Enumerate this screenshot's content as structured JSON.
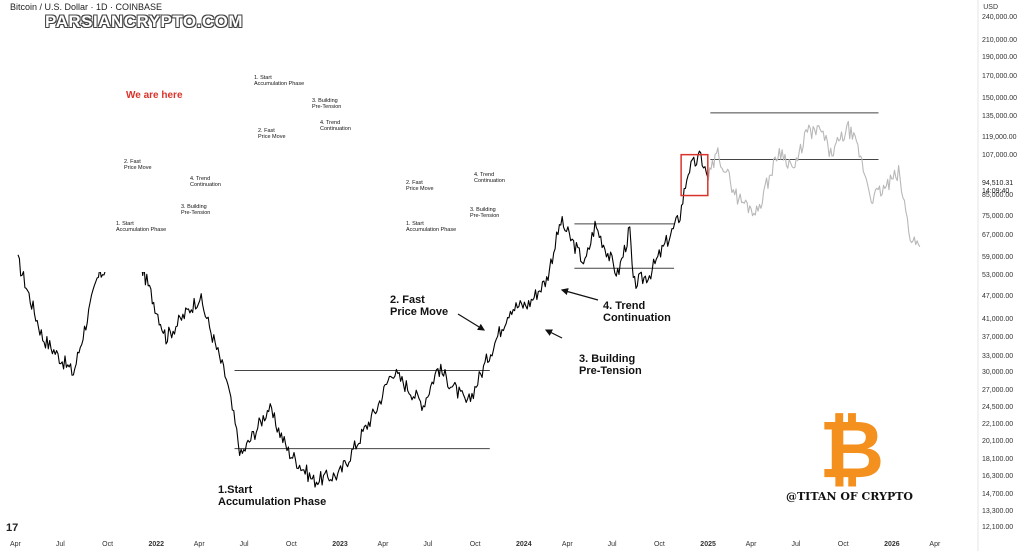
{
  "header": {
    "symbol_text": "Bitcoin / U.S. Dollar · 1D · COINBASE",
    "watermark": "PARSIANCRYPTO.COM",
    "currency": "USD"
  },
  "price_tag": {
    "price": "94,510.31",
    "countdown": "14:09:40"
  },
  "tv_logo": "17",
  "chart_data": {
    "type": "line",
    "x_axis_labels": [
      "Apr",
      "Jul",
      "Oct",
      "2022",
      "Apr",
      "Jul",
      "Oct",
      "2023",
      "Apr",
      "Jul",
      "Oct",
      "2024",
      "Apr",
      "Jul",
      "Oct",
      "2025",
      "Apr",
      "Jul",
      "Oct",
      "2026",
      "Apr"
    ],
    "x_axis_bold": [
      "2022",
      "2023",
      "2024",
      "2025",
      "2026"
    ],
    "y_axis_labels": [
      240000,
      210000,
      190000,
      170000,
      150000,
      135000,
      119000,
      107000,
      94510.31,
      85000,
      75000,
      67000,
      59000,
      53000,
      47000,
      41000,
      37000,
      33000,
      30000,
      27000,
      24500,
      22100,
      20100,
      18100,
      16300,
      14700,
      13300,
      12100
    ],
    "y_scale": "log",
    "ylim": [
      11500,
      255000
    ],
    "series": [
      {
        "x": [
          "2021-04-01",
          "2021-05-20",
          "2021-07-20",
          "2021-09-05",
          "2021-11-10",
          "2022-01-20",
          "2022-03-28",
          "2022-05-20",
          "2022-06-18",
          "2022-08-12",
          "2022-09-20",
          "2022-11-09",
          "2022-12-30",
          "2023-03-15",
          "2023-04-14",
          "2023-06-15",
          "2023-07-14",
          "2023-09-11",
          "2023-10-24",
          "2023-12-05",
          "2024-01-10",
          "2024-02-15",
          "2024-03-14",
          "2024-05-01",
          "2024-05-21",
          "2024-07-05",
          "2024-07-29",
          "2024-08-05",
          "2024-09-06",
          "2024-10-29",
          "2024-11-06",
          "2024-11-22",
          "2024-12-17",
          "2024-12-31"
        ],
        "y": [
          58000,
          37000,
          30000,
          52000,
          68000,
          37000,
          47000,
          29000,
          18500,
          24500,
          19000,
          16000,
          16600,
          24500,
          30500,
          25000,
          31000,
          25000,
          33500,
          44000,
          45000,
          52000,
          73000,
          57000,
          71500,
          53500,
          69500,
          50500,
          53500,
          72000,
          76000,
          98500,
          107000,
          94510.31
        ]
      },
      {
        "x": [
          "2025-01-01",
          "2025-01-20",
          "2025-02-28",
          "2025-04-07",
          "2025-05-22",
          "2025-06-22",
          "2025-07-14",
          "2025-08-14",
          "2025-09-01",
          "2025-10-06",
          "2025-10-25",
          "2025-11-21",
          "2025-12-15",
          "2026-01-14",
          "2026-02-06",
          "2026-02-25"
        ],
        "y": [
          94000,
          109000,
          84000,
          77000,
          111000,
          99000,
          123000,
          124000,
          108000,
          126000,
          112000,
          84000,
          88000,
          97000,
          67000,
          63000
        ]
      }
    ],
    "ranges": [
      {
        "name": "accumulation-range",
        "low": 19300,
        "high": 30500,
        "x_start": "2022-06-05",
        "x_end": "2023-10-25"
      },
      {
        "name": "pre-tension-range",
        "low": 55500,
        "high": 72000,
        "x_start": "2024-04-10",
        "x_end": "2024-10-25"
      },
      {
        "name": "projected-range",
        "low": 105000,
        "high": 138000,
        "x_start": "2025-01-05",
        "x_end": "2025-12-05"
      }
    ],
    "annotations": [
      {
        "text": "1.Start\nAccumulation Phase"
      },
      {
        "text": "2. Fast\nPrice Move"
      },
      {
        "text": "3. Building\nPre-Tension"
      },
      {
        "text": "4. Trend\nContinuation"
      }
    ],
    "highlight_box": {
      "x_start": "2024-11-08",
      "x_end": "2024-12-31",
      "low": 85000,
      "high": 108000
    },
    "colors": {
      "price": "#000000",
      "projection": "#b8b8b8",
      "range_lines": "#444444",
      "highlight": "#d9342b"
    }
  },
  "inset": {
    "title": "We are here",
    "labels": [
      {
        "text": "1. Start\nAccumulation Phase"
      },
      {
        "text": "2. Fast\nPrice Move"
      },
      {
        "text": "3. Building\nPre-Tension"
      },
      {
        "text": "4. Trend\nContinuation"
      },
      {
        "text": "1. Start\nAccumulation Phase"
      },
      {
        "text": "2. Fast\nPrice Move"
      },
      {
        "text": "3. Building\nPre-Tension"
      },
      {
        "text": "4. Trend\nContinuation"
      },
      {
        "text": "1. Start\nAccumulation Phase"
      },
      {
        "text": "2. Fast\nPrice Move"
      },
      {
        "text": "3. Building\nPre-Tension"
      },
      {
        "text": "4. Trend\nContinuation"
      }
    ],
    "colors": {
      "frame": "#3ba7c9",
      "marker": "#d9342b"
    }
  },
  "credit": "@TITAN OF CRYPTO",
  "logo_symbol": "₿"
}
